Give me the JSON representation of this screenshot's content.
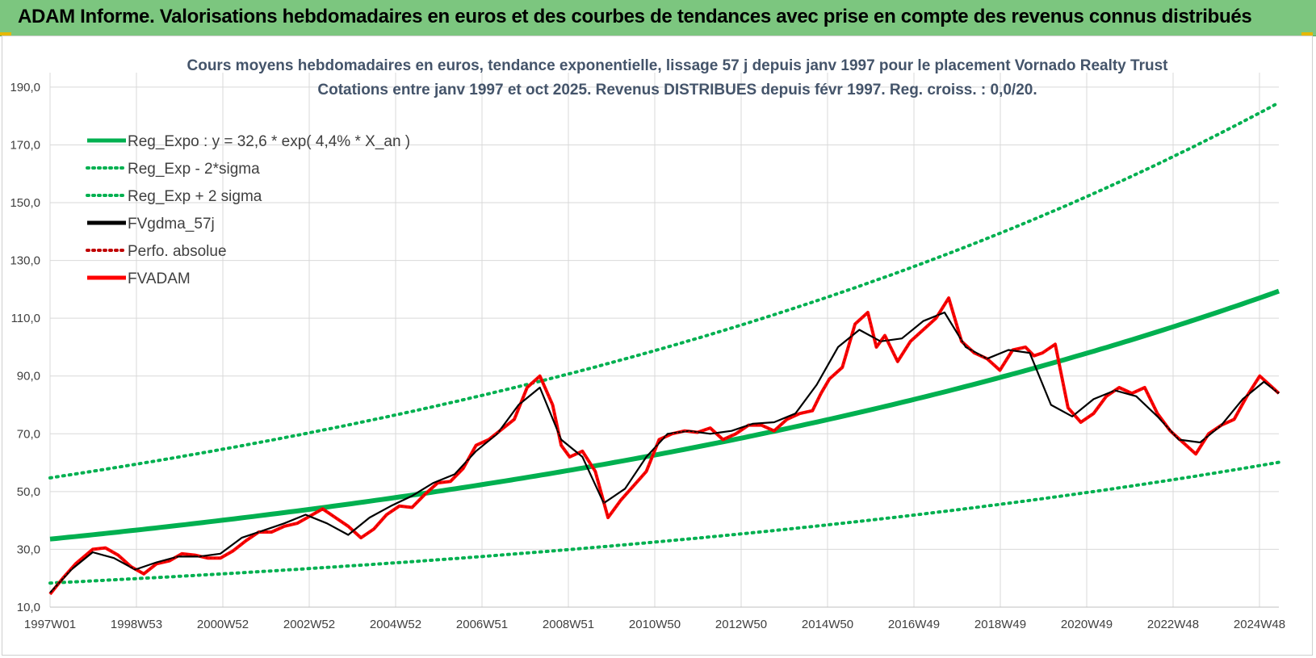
{
  "banner": {
    "title": "ADAM Informe. Valorisations hebdomadaires en euros et des courbes de tendances avec prise en compte des revenus connus distribués"
  },
  "chart_data": {
    "type": "line",
    "title": "Cours moyens hebdomadaires en euros, tendance exponentielle, lissage 57 j depuis janv 1997 pour le placement Vornado Realty Trust",
    "subtitle": "Cotations entre janv 1997 et oct 2025. Revenus DISTRIBUES depuis févr 1997. Reg. croiss. : 0,0/20.",
    "xlabel": "",
    "ylabel": "",
    "x_range": [
      1997.0,
      2025.85
    ],
    "ylim": [
      10,
      195
    ],
    "y_ticks": [
      "10,0",
      "30,0",
      "50,0",
      "70,0",
      "90,0",
      "110,0",
      "130,0",
      "150,0",
      "170,0",
      "190,0"
    ],
    "x_tick_labels": [
      "1997W01",
      "1998W53",
      "2000W52",
      "2002W52",
      "2004W52",
      "2006W51",
      "2008W51",
      "2010W50",
      "2012W50",
      "2014W50",
      "2016W49",
      "2018W49",
      "2020W49",
      "2022W48",
      "2024W48"
    ],
    "grid": true,
    "legend_position": "top-left",
    "regression": {
      "a": 32.6,
      "rate": 0.044,
      "sigma_factor": 0.513
    },
    "colors": {
      "reg": "#00b050",
      "gdma": "#000000",
      "perfo": "#c00000",
      "fvadam": "#ff0000",
      "grid": "#d9d9d9",
      "title": "#44546a",
      "axis_text": "#404040"
    },
    "legend": [
      {
        "label": "Reg_Expo : y = 32,6 * exp( 4,4% *  X_an )",
        "color": "#00b050",
        "style": "solid"
      },
      {
        "label": "Reg_Exp - 2*sigma",
        "color": "#00b050",
        "style": "dotted"
      },
      {
        "label": "Reg_Exp + 2 sigma",
        "color": "#00b050",
        "style": "dotted"
      },
      {
        "label": "FVgdma_57j",
        "color": "#000000",
        "style": "solid"
      },
      {
        "label": "Perfo. absolue",
        "color": "#c00000",
        "style": "dotted"
      },
      {
        "label": "FVADAM",
        "color": "#ff0000",
        "style": "solid"
      }
    ],
    "series": [
      {
        "name": "FVADAM",
        "x": [
          1997.0,
          1997.3,
          1997.6,
          1998.0,
          1998.3,
          1998.6,
          1998.9,
          1999.2,
          1999.5,
          1999.8,
          2000.1,
          2000.4,
          2000.7,
          2001.0,
          2001.3,
          2001.6,
          2001.9,
          2002.2,
          2002.5,
          2002.8,
          2003.1,
          2003.4,
          2003.7,
          2004.0,
          2004.3,
          2004.6,
          2004.9,
          2005.2,
          2005.5,
          2005.8,
          2006.1,
          2006.4,
          2006.7,
          2007.0,
          2007.3,
          2007.6,
          2007.9,
          2008.2,
          2008.5,
          2008.8,
          2009.0,
          2009.2,
          2009.5,
          2009.8,
          2010.1,
          2010.4,
          2010.7,
          2011.0,
          2011.3,
          2011.6,
          2011.9,
          2012.2,
          2012.5,
          2012.8,
          2013.1,
          2013.4,
          2013.7,
          2014.0,
          2014.3,
          2014.6,
          2014.9,
          2015.1,
          2015.3,
          2015.6,
          2015.9,
          2016.2,
          2016.4,
          2016.6,
          2016.9,
          2017.2,
          2017.5,
          2017.8,
          2018.1,
          2018.4,
          2018.7,
          2019.0,
          2019.3,
          2019.6,
          2019.9,
          2020.1,
          2020.3,
          2020.6,
          2020.9,
          2021.2,
          2021.5,
          2021.8,
          2022.1,
          2022.4,
          2022.7,
          2023.0,
          2023.3,
          2023.6,
          2023.9,
          2024.2,
          2024.5,
          2024.8,
          2025.1,
          2025.4,
          2025.7,
          2025.85
        ],
        "values": [
          14.5,
          20.0,
          25.0,
          30.0,
          30.5,
          28.0,
          24.0,
          21.5,
          25.0,
          26.0,
          28.5,
          28.0,
          27.0,
          27.0,
          29.5,
          33.0,
          36.0,
          36.0,
          38.0,
          39.0,
          41.5,
          44.0,
          41.0,
          38.0,
          34.0,
          37.0,
          42.0,
          45.0,
          44.5,
          49.0,
          53.0,
          53.5,
          58.0,
          66.0,
          68.0,
          71.5,
          75.0,
          86.0,
          90.0,
          80.0,
          66.0,
          62.0,
          64.0,
          57.0,
          41.0,
          47.0,
          52.0,
          57.0,
          68.0,
          70.0,
          71.0,
          70.5,
          72.0,
          68.0,
          70.0,
          73.0,
          73.0,
          71.0,
          75.0,
          77.0,
          78.0,
          84.0,
          89.0,
          93.0,
          108.0,
          112.0,
          100.0,
          104.0,
          95.0,
          102.0,
          106.0,
          110.0,
          117.0,
          102.0,
          98.0,
          96.0,
          92.0,
          99.0,
          100.0,
          97.0,
          98.0,
          101.0,
          79.0,
          74.0,
          77.0,
          83.0,
          86.0,
          84.0,
          86.0,
          77.0,
          71.0,
          67.0,
          63.0,
          70.0,
          73.0,
          75.0,
          83.0,
          90.0,
          86.0,
          84.0
        ]
      },
      {
        "name": "FVgdma_57j",
        "x": [
          1997.0,
          1997.5,
          1998.0,
          1998.5,
          1999.0,
          1999.5,
          2000.0,
          2000.5,
          2001.0,
          2001.5,
          2002.0,
          2002.5,
          2003.0,
          2003.5,
          2004.0,
          2004.5,
          2005.0,
          2005.5,
          2006.0,
          2006.5,
          2007.0,
          2007.5,
          2008.0,
          2008.5,
          2009.0,
          2009.5,
          2010.0,
          2010.5,
          2011.0,
          2011.5,
          2012.0,
          2012.5,
          2013.0,
          2013.5,
          2014.0,
          2014.5,
          2015.0,
          2015.5,
          2016.0,
          2016.5,
          2017.0,
          2017.5,
          2018.0,
          2018.5,
          2019.0,
          2019.5,
          2020.0,
          2020.5,
          2021.0,
          2021.5,
          2022.0,
          2022.5,
          2023.0,
          2023.5,
          2024.0,
          2024.5,
          2025.0,
          2025.5,
          2025.85
        ],
        "values": [
          15.0,
          23.0,
          29.0,
          27.0,
          23.0,
          25.5,
          27.5,
          27.5,
          28.5,
          34.0,
          36.5,
          39.0,
          42.0,
          39.0,
          35.0,
          41.0,
          45.0,
          48.5,
          53.0,
          56.0,
          64.0,
          70.0,
          80.0,
          86.0,
          68.0,
          62.0,
          46.0,
          51.0,
          62.0,
          70.0,
          71.0,
          70.0,
          71.0,
          73.5,
          74.0,
          77.0,
          87.0,
          100.0,
          106.0,
          102.0,
          103.0,
          109.0,
          112.0,
          100.0,
          96.0,
          99.0,
          98.0,
          80.0,
          76.0,
          82.0,
          85.0,
          83.0,
          76.0,
          68.0,
          67.0,
          73.0,
          82.0,
          88.0,
          84.0
        ]
      }
    ]
  }
}
